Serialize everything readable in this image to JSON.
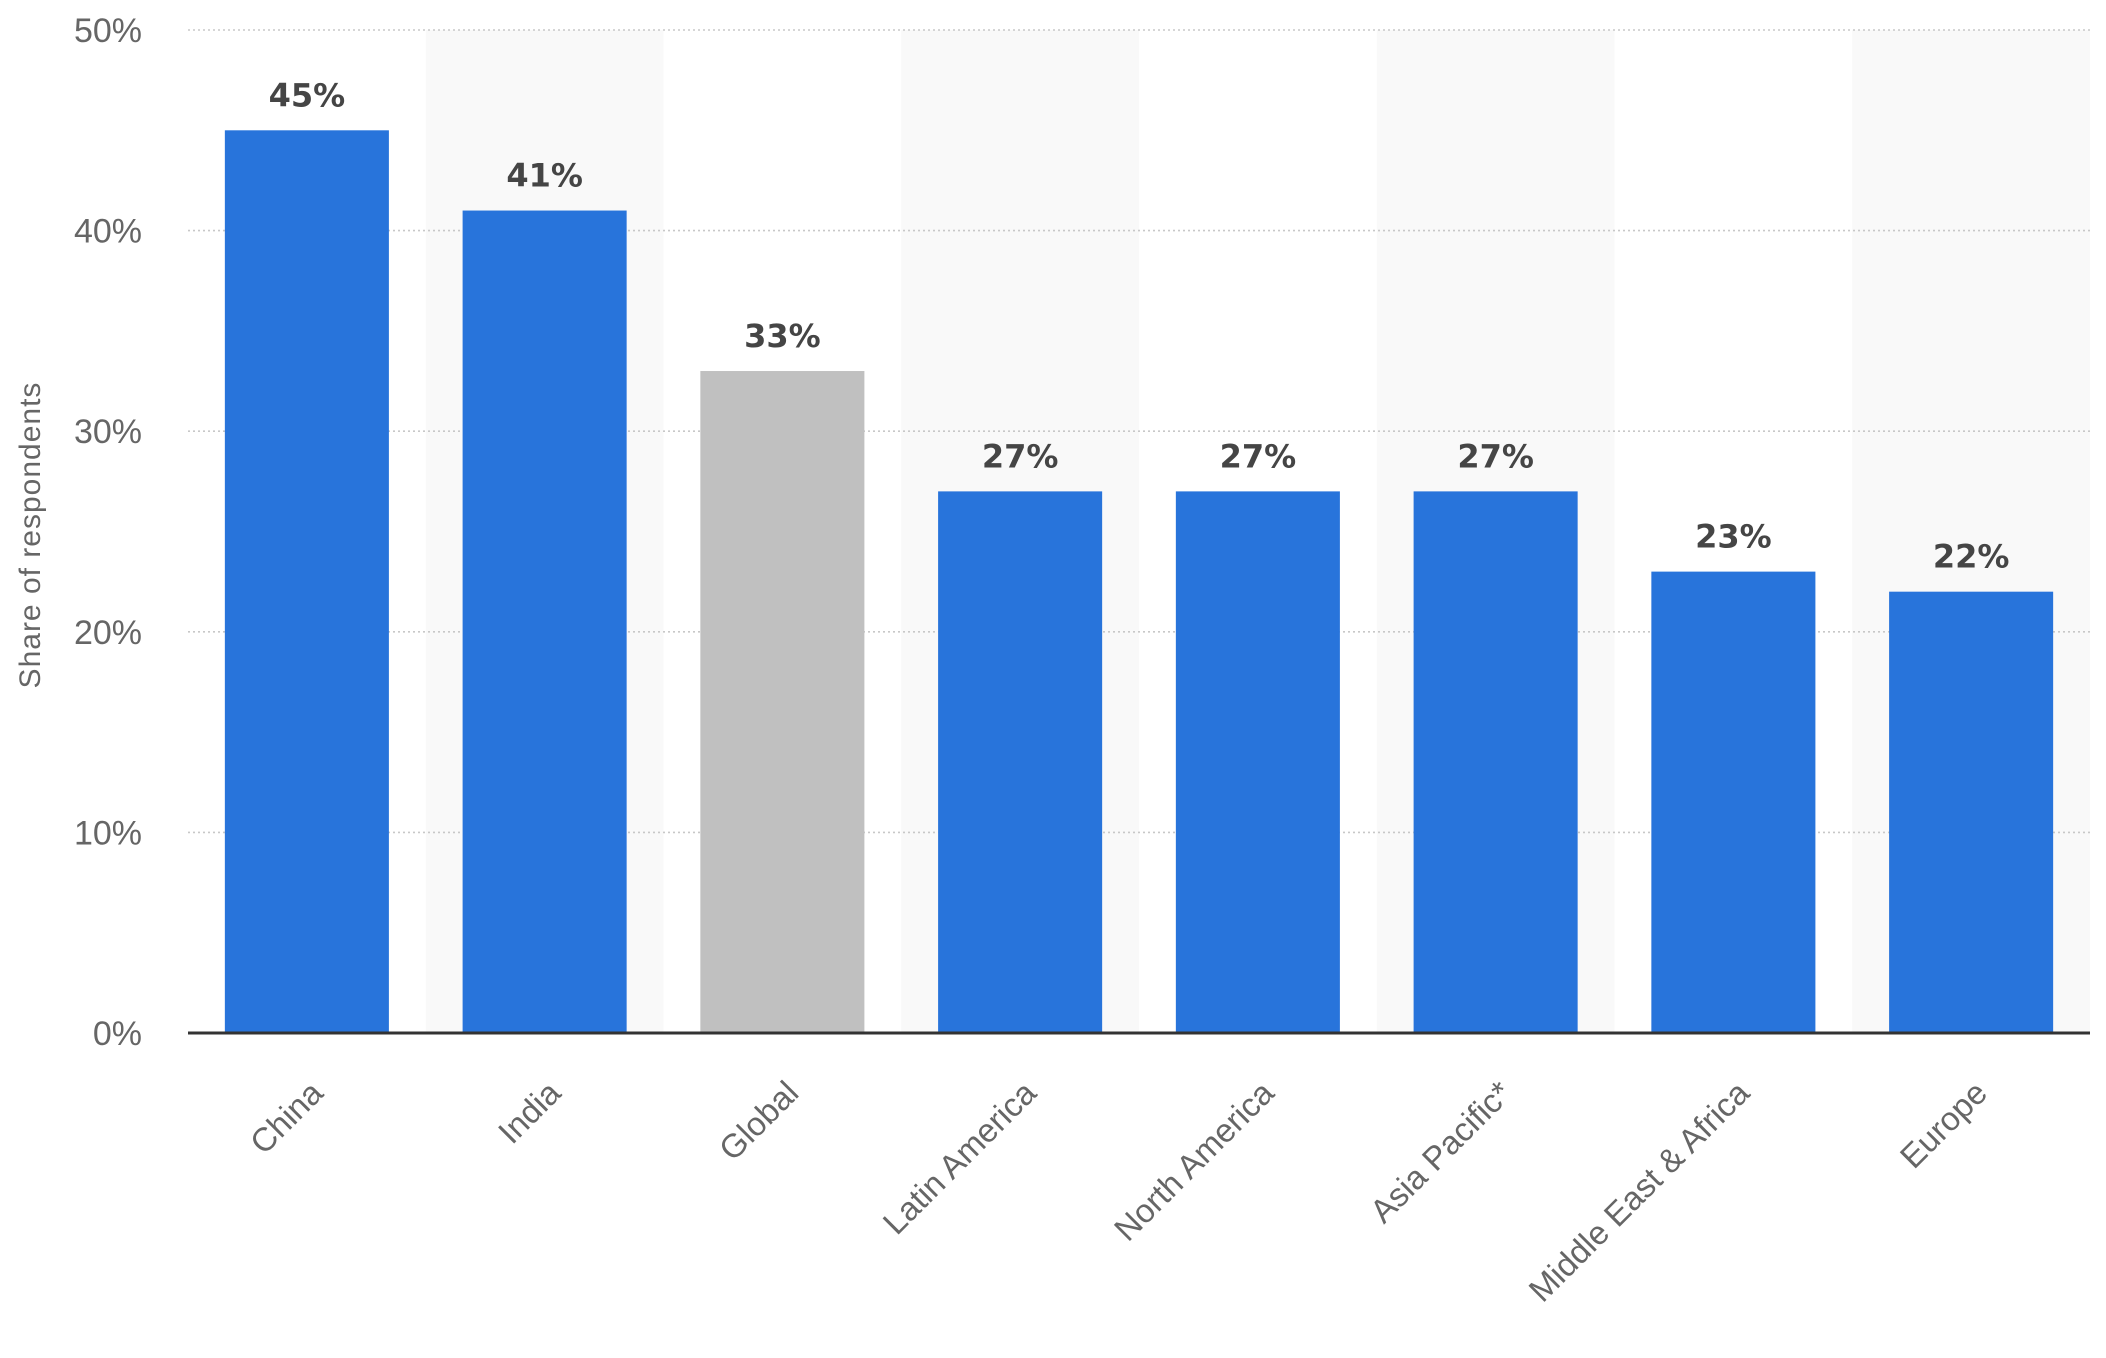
{
  "chart_data": {
    "type": "bar",
    "categories": [
      "China",
      "India",
      "Global",
      "Latin America",
      "North America",
      "Asia Pacific*",
      "Middle East & Africa",
      "Europe"
    ],
    "values": [
      45,
      41,
      33,
      27,
      27,
      27,
      23,
      22
    ],
    "value_labels": [
      "45%",
      "41%",
      "33%",
      "27%",
      "27%",
      "27%",
      "23%",
      "22%"
    ],
    "highlight_category": "Global",
    "ylabel": "Share of respondents",
    "xlabel": "",
    "ylim": [
      0,
      50
    ],
    "yticks": [
      0,
      10,
      20,
      30,
      40,
      50
    ],
    "ytick_labels": [
      "0%",
      "10%",
      "20%",
      "30%",
      "40%",
      "50%"
    ],
    "grid": true,
    "colors": {
      "bar": "#2874db",
      "highlight_bar": "#c0c0c0",
      "band": "#f9f9f9",
      "grid": "#c8c8c8",
      "axis": "#333333"
    }
  }
}
